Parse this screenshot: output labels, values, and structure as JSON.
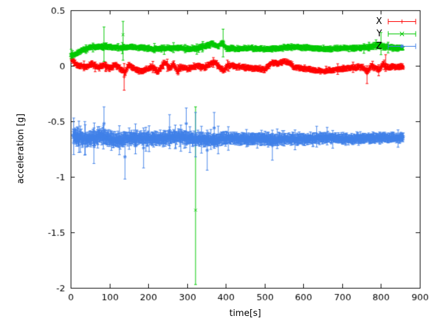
{
  "colors": {
    "background": "#ffffff",
    "axis": "#000000",
    "text": "#000000"
  },
  "chart_data": {
    "type": "scatter",
    "title": "",
    "xlabel": "time[s]",
    "ylabel": "acceleration [g]",
    "xlim": [
      0,
      900
    ],
    "ylim": [
      -2,
      0.5
    ],
    "grid": false,
    "legend_position": "top-right",
    "xticks": [
      0,
      100,
      200,
      300,
      400,
      500,
      600,
      700,
      800,
      900
    ],
    "xtick_labels": [
      "0",
      "100",
      "200",
      "300",
      "400",
      "500",
      "600",
      "700",
      "800",
      "900"
    ],
    "yticks": [
      0.5,
      0,
      -0.5,
      -1,
      -1.5,
      -2
    ],
    "ytick_labels": [
      "0.5",
      "0",
      "-0.5",
      "-1",
      "-1.5",
      "-2"
    ],
    "series": [
      {
        "name": "X",
        "color": "#ff0000",
        "marker": "plus",
        "style": "yerrorbars",
        "seed": 11,
        "x_start": 2,
        "x_end": 858,
        "step": 1.2,
        "noise": 0.013,
        "err": 0.018,
        "err_spike_prob": 0.03,
        "err_spike_scale": 2.2,
        "baseline": [
          [
            0,
            0.07
          ],
          [
            10,
            0.03
          ],
          [
            20,
            0.0
          ],
          [
            40,
            -0.01
          ],
          [
            55,
            0.02
          ],
          [
            70,
            -0.02
          ],
          [
            85,
            0.01
          ],
          [
            100,
            -0.02
          ],
          [
            115,
            0.01
          ],
          [
            130,
            -0.03
          ],
          [
            140,
            -0.06
          ],
          [
            150,
            0.01
          ],
          [
            165,
            -0.03
          ],
          [
            180,
            -0.05
          ],
          [
            195,
            -0.03
          ],
          [
            210,
            -0.01
          ],
          [
            225,
            -0.06
          ],
          [
            235,
            0.0
          ],
          [
            245,
            0.03
          ],
          [
            255,
            -0.03
          ],
          [
            265,
            0.02
          ],
          [
            275,
            -0.05
          ],
          [
            285,
            -0.01
          ],
          [
            300,
            -0.03
          ],
          [
            315,
            -0.01
          ],
          [
            330,
            0.0
          ],
          [
            345,
            -0.02
          ],
          [
            360,
            0.02
          ],
          [
            375,
            0.03
          ],
          [
            385,
            -0.02
          ],
          [
            395,
            -0.04
          ],
          [
            405,
            0.0
          ],
          [
            420,
            0.0
          ],
          [
            440,
            -0.01
          ],
          [
            460,
            -0.02
          ],
          [
            480,
            -0.02
          ],
          [
            500,
            -0.04
          ],
          [
            510,
            0.0
          ],
          [
            520,
            0.03
          ],
          [
            535,
            0.02
          ],
          [
            550,
            0.04
          ],
          [
            565,
            0.02
          ],
          [
            575,
            -0.01
          ],
          [
            590,
            -0.02
          ],
          [
            610,
            -0.03
          ],
          [
            630,
            -0.04
          ],
          [
            650,
            -0.05
          ],
          [
            670,
            -0.04
          ],
          [
            690,
            -0.03
          ],
          [
            710,
            -0.02
          ],
          [
            730,
            -0.02
          ],
          [
            750,
            -0.01
          ],
          [
            765,
            -0.05
          ],
          [
            775,
            0.0
          ],
          [
            785,
            -0.02
          ],
          [
            795,
            -0.04
          ],
          [
            805,
            0.02
          ],
          [
            815,
            -0.02
          ],
          [
            830,
            -0.01
          ],
          [
            858,
            -0.01
          ]
        ],
        "outliers": [
          {
            "x": 138,
            "y": -0.1,
            "lo": -0.22,
            "hi": 0.02
          },
          {
            "x": 764,
            "y": -0.07,
            "lo": -0.16,
            "hi": 0.0
          },
          {
            "x": 812,
            "y": 0.02,
            "lo": -0.05,
            "hi": 0.1
          }
        ]
      },
      {
        "name": "Y",
        "color": "#00c800",
        "marker": "cross",
        "style": "yerrorbars",
        "seed": 22,
        "x_start": 0,
        "x_end": 858,
        "step": 1.2,
        "noise": 0.011,
        "err": 0.018,
        "err_spike_prob": 0.025,
        "err_spike_scale": 2.0,
        "baseline": [
          [
            0,
            0.1
          ],
          [
            15,
            0.11
          ],
          [
            30,
            0.14
          ],
          [
            45,
            0.16
          ],
          [
            60,
            0.17
          ],
          [
            80,
            0.17
          ],
          [
            100,
            0.17
          ],
          [
            130,
            0.16
          ],
          [
            160,
            0.17
          ],
          [
            190,
            0.16
          ],
          [
            220,
            0.15
          ],
          [
            250,
            0.16
          ],
          [
            280,
            0.16
          ],
          [
            310,
            0.15
          ],
          [
            330,
            0.16
          ],
          [
            350,
            0.18
          ],
          [
            365,
            0.2
          ],
          [
            380,
            0.17
          ],
          [
            390,
            0.21
          ],
          [
            400,
            0.16
          ],
          [
            430,
            0.15
          ],
          [
            460,
            0.16
          ],
          [
            500,
            0.15
          ],
          [
            540,
            0.16
          ],
          [
            580,
            0.17
          ],
          [
            620,
            0.16
          ],
          [
            660,
            0.15
          ],
          [
            700,
            0.16
          ],
          [
            740,
            0.16
          ],
          [
            770,
            0.17
          ],
          [
            790,
            0.19
          ],
          [
            810,
            0.17
          ],
          [
            835,
            0.16
          ],
          [
            858,
            0.16
          ]
        ],
        "outliers": [
          {
            "x": 86,
            "y": 0.2,
            "lo": 0.04,
            "hi": 0.35
          },
          {
            "x": 135,
            "y": 0.28,
            "lo": 0.05,
            "hi": 0.4
          },
          {
            "x": 322,
            "y": -1.3,
            "lo": -1.97,
            "hi": -0.37
          },
          {
            "x": 393,
            "y": 0.22,
            "lo": 0.08,
            "hi": 0.33
          },
          {
            "x": 800,
            "y": 0.2,
            "lo": 0.1,
            "hi": 0.3
          }
        ]
      },
      {
        "name": "Z",
        "color": "#4080e8",
        "marker": "star",
        "style": "yerrorbars",
        "seed": 33,
        "x_start": 6,
        "x_end": 858,
        "step": 0.9,
        "noise_profile": [
          [
            0,
            0.034
          ],
          [
            150,
            0.03
          ],
          [
            300,
            0.027
          ],
          [
            500,
            0.024
          ],
          [
            858,
            0.02
          ]
        ],
        "err_profile": [
          [
            0,
            0.05
          ],
          [
            200,
            0.045
          ],
          [
            400,
            0.04
          ],
          [
            600,
            0.035
          ],
          [
            858,
            0.03
          ]
        ],
        "err_spike_prob": 0.04,
        "err_spike_scale": 2.2,
        "baseline": [
          [
            0,
            -0.63
          ],
          [
            40,
            -0.66
          ],
          [
            80,
            -0.64
          ],
          [
            120,
            -0.67
          ],
          [
            160,
            -0.65
          ],
          [
            200,
            -0.66
          ],
          [
            240,
            -0.65
          ],
          [
            280,
            -0.64
          ],
          [
            320,
            -0.66
          ],
          [
            360,
            -0.67
          ],
          [
            400,
            -0.65
          ],
          [
            440,
            -0.66
          ],
          [
            480,
            -0.65
          ],
          [
            520,
            -0.67
          ],
          [
            560,
            -0.66
          ],
          [
            600,
            -0.66
          ],
          [
            640,
            -0.65
          ],
          [
            680,
            -0.65
          ],
          [
            720,
            -0.66
          ],
          [
            760,
            -0.65
          ],
          [
            800,
            -0.65
          ],
          [
            858,
            -0.65
          ]
        ],
        "outliers": [
          {
            "x": 8,
            "y": -0.64,
            "lo": -0.8,
            "hi": -0.47
          },
          {
            "x": 60,
            "y": -0.72,
            "lo": -0.88,
            "hi": -0.56
          },
          {
            "x": 86,
            "y": -0.52,
            "lo": -0.66,
            "hi": -0.37
          },
          {
            "x": 140,
            "y": -0.82,
            "lo": -1.02,
            "hi": -0.6
          },
          {
            "x": 188,
            "y": -0.74,
            "lo": -0.92,
            "hi": -0.56
          },
          {
            "x": 255,
            "y": -0.58,
            "lo": -0.72,
            "hi": -0.44
          },
          {
            "x": 298,
            "y": -0.52,
            "lo": -0.66,
            "hi": -0.38
          },
          {
            "x": 322,
            "y": -0.62,
            "lo": -0.82,
            "hi": -0.42
          },
          {
            "x": 352,
            "y": -0.76,
            "lo": -0.94,
            "hi": -0.58
          },
          {
            "x": 370,
            "y": -0.56,
            "lo": -0.7,
            "hi": -0.42
          },
          {
            "x": 520,
            "y": -0.72,
            "lo": -0.85,
            "hi": -0.58
          }
        ]
      }
    ]
  }
}
